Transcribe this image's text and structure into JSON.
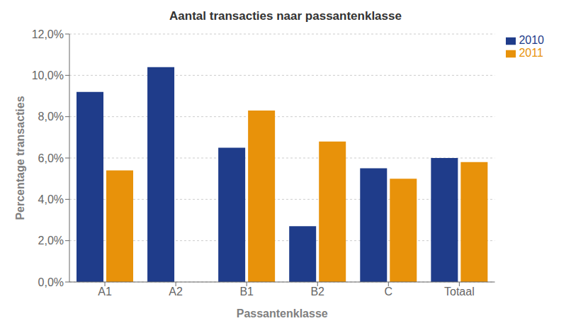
{
  "chart_data": {
    "type": "bar",
    "title": "Aantal transacties naar passantenklasse",
    "xlabel": "Passantenklasse",
    "ylabel": "Percentage transacties",
    "categories": [
      "A1",
      "A2",
      "B1",
      "B2",
      "C",
      "Totaal"
    ],
    "series": [
      {
        "name": "2010",
        "color": "#1F3C8A",
        "values": [
          0.092,
          0.104,
          0.065,
          0.027,
          0.055,
          0.06
        ]
      },
      {
        "name": "2011",
        "color": "#E8920A",
        "values": [
          0.054,
          0.0,
          0.083,
          0.068,
          0.05,
          0.058
        ]
      }
    ],
    "ylim": [
      0,
      0.12
    ],
    "yticks": [
      {
        "value": 0.0,
        "label": "0,0%"
      },
      {
        "value": 0.02,
        "label": "2,0%"
      },
      {
        "value": 0.04,
        "label": "4,0%"
      },
      {
        "value": 0.06,
        "label": "6,0%"
      },
      {
        "value": 0.08,
        "label": "8,0%"
      },
      {
        "value": 0.1,
        "label": "10,0%"
      },
      {
        "value": 0.12,
        "label": "12,0%"
      }
    ],
    "grid": true,
    "legend": "upper right"
  }
}
